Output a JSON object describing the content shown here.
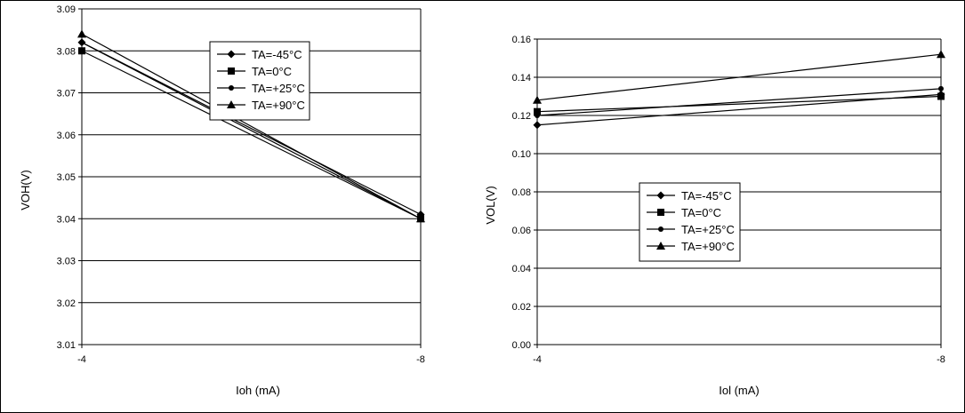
{
  "chart_data": [
    {
      "type": "line",
      "title": "",
      "xlabel": "Ioh (mA)",
      "ylabel": "VOH(V)",
      "categories": [
        "-4",
        "-8"
      ],
      "ylim": [
        3.01,
        3.09
      ],
      "yticks": [
        "3.01",
        "3.02",
        "3.03",
        "3.04",
        "3.05",
        "3.06",
        "3.07",
        "3.08",
        "3.09"
      ],
      "grid": true,
      "legend_position": "top-right",
      "series": [
        {
          "name": "TA=-45°C",
          "marker": "diamond",
          "values": [
            3.082,
            3.041
          ]
        },
        {
          "name": "TA=0°C",
          "marker": "square",
          "values": [
            3.08,
            3.04
          ]
        },
        {
          "name": "TA=+25°C",
          "marker": "circle",
          "values": [
            3.082,
            3.04
          ]
        },
        {
          "name": "TA=+90°C",
          "marker": "triangle",
          "values": [
            3.084,
            3.04
          ]
        }
      ]
    },
    {
      "type": "line",
      "title": "",
      "xlabel": "Iol (mA)",
      "ylabel": "VOL(V)",
      "categories": [
        "-4",
        "-8"
      ],
      "ylim": [
        0.0,
        0.16
      ],
      "yticks": [
        "0.00",
        "0.02",
        "0.04",
        "0.06",
        "0.08",
        "0.10",
        "0.12",
        "0.14",
        "0.16"
      ],
      "grid": true,
      "legend_position": "center",
      "series": [
        {
          "name": "TA=-45°C",
          "marker": "diamond",
          "values": [
            0.115,
            0.131
          ]
        },
        {
          "name": "TA=0°C",
          "marker": "square",
          "values": [
            0.122,
            0.13
          ]
        },
        {
          "name": "TA=+25°C",
          "marker": "circle",
          "values": [
            0.12,
            0.134
          ]
        },
        {
          "name": "TA=+90°C",
          "marker": "triangle",
          "values": [
            0.128,
            0.152
          ]
        }
      ]
    }
  ],
  "colors": {
    "line": "#000000",
    "grid": "#000000",
    "frame": "#000000"
  }
}
